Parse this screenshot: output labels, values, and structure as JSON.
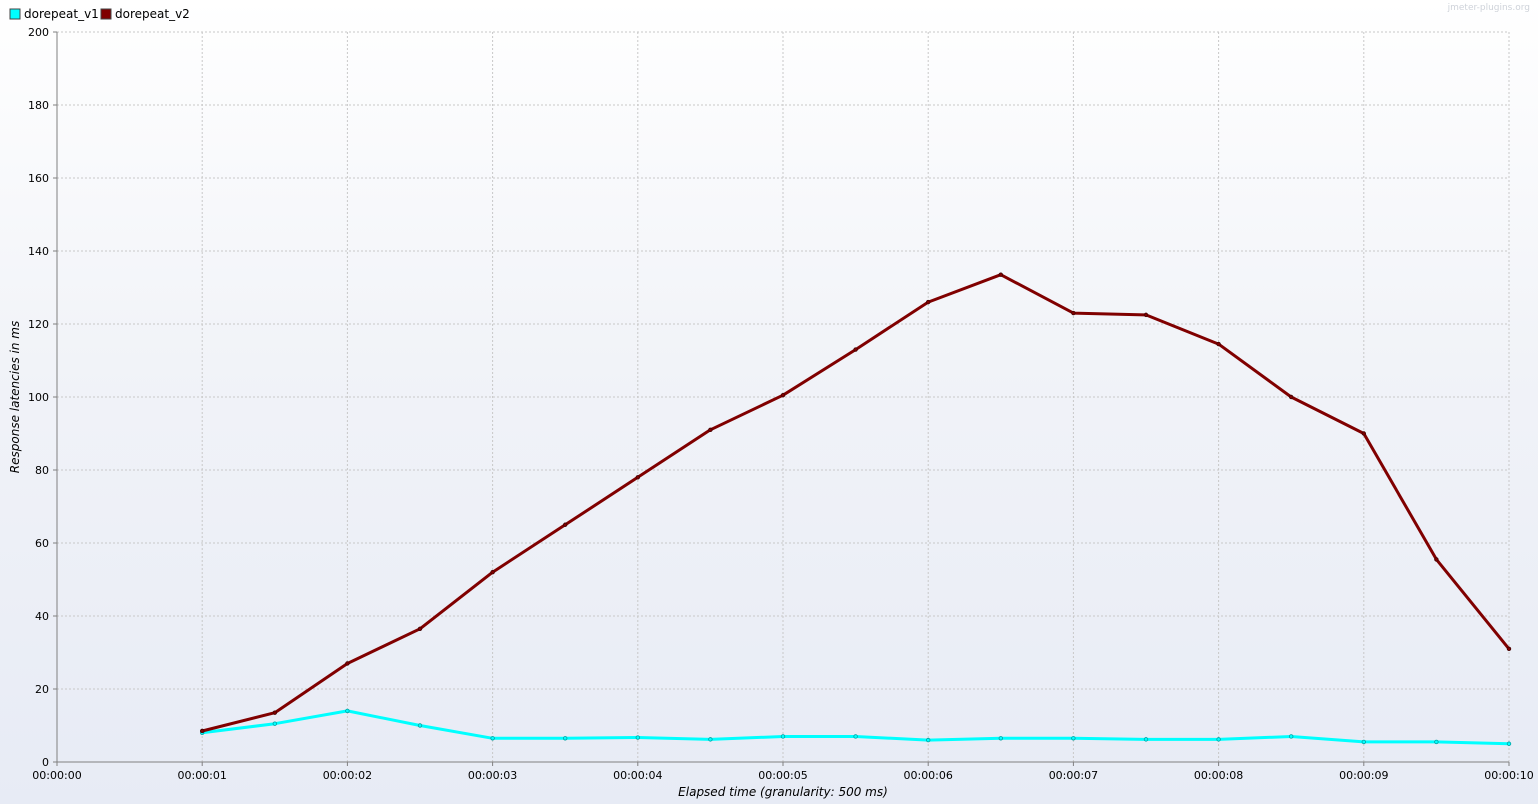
{
  "watermark": "jmeter-plugins.org",
  "chart_data": {
    "type": "line",
    "title": "",
    "xlabel": "Elapsed time (granularity: 500 ms)",
    "ylabel": "Response latencies in ms",
    "xlim": [
      0,
      10
    ],
    "ylim": [
      0,
      200
    ],
    "x_ticks": [
      {
        "value": 0,
        "label": "00:00:00"
      },
      {
        "value": 1,
        "label": "00:00:01"
      },
      {
        "value": 2,
        "label": "00:00:02"
      },
      {
        "value": 3,
        "label": "00:00:03"
      },
      {
        "value": 4,
        "label": "00:00:04"
      },
      {
        "value": 5,
        "label": "00:00:05"
      },
      {
        "value": 6,
        "label": "00:00:06"
      },
      {
        "value": 7,
        "label": "00:00:07"
      },
      {
        "value": 8,
        "label": "00:00:08"
      },
      {
        "value": 9,
        "label": "00:00:09"
      },
      {
        "value": 10,
        "label": "00:00:10"
      }
    ],
    "y_ticks": [
      0,
      20,
      40,
      60,
      80,
      100,
      120,
      140,
      160,
      180,
      200
    ],
    "grid": true,
    "legend_position": "top-left",
    "series": [
      {
        "name": "dorepeat_v1",
        "color": "#00ffff",
        "x": [
          1,
          1.5,
          2,
          2.5,
          3,
          3.5,
          4,
          4.5,
          5,
          5.5,
          6,
          6.5,
          7,
          7.5,
          8,
          8.5,
          9,
          9.5,
          10
        ],
        "y": [
          8,
          10.5,
          14,
          10,
          6.5,
          6.5,
          6.7,
          6.2,
          7,
          7,
          6,
          6.5,
          6.5,
          6.2,
          6.2,
          7,
          5.5,
          5.5,
          5
        ]
      },
      {
        "name": "dorepeat_v2",
        "color": "#800000",
        "x": [
          1,
          1.5,
          2,
          2.5,
          3,
          3.5,
          4,
          4.5,
          5,
          5.5,
          6,
          6.5,
          7,
          7.5,
          8,
          8.5,
          9,
          9.5,
          10
        ],
        "y": [
          8.5,
          13.5,
          27,
          36.5,
          52,
          65,
          78,
          91,
          100.5,
          113,
          126,
          133.5,
          123,
          122.5,
          114.5,
          100,
          90,
          55.5,
          31
        ]
      }
    ]
  }
}
